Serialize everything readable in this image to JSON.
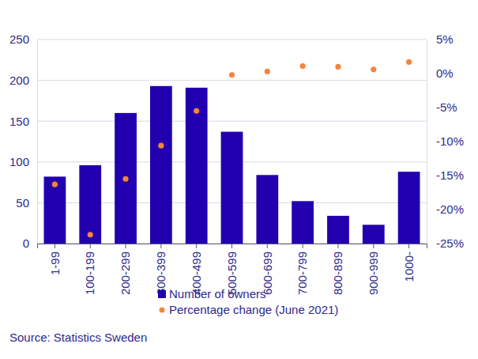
{
  "chart_data": {
    "type": "bar",
    "categories": [
      "1-99",
      "100-199",
      "200-299",
      "300-399",
      "400-499",
      "500-599",
      "600-699",
      "700-799",
      "800-899",
      "900-999",
      "1000-"
    ],
    "series": [
      {
        "name": "Number of owners",
        "type": "bar",
        "color": "#2200b0",
        "values": [
          82,
          96,
          160,
          193,
          191,
          137,
          84,
          52,
          34,
          23,
          88
        ]
      },
      {
        "name": "Percentage change (June 2021)",
        "type": "scatter",
        "color": "#f5843c",
        "marker": "circle",
        "axis": "y2",
        "values": [
          -16.3,
          -23.7,
          -15.5,
          -10.6,
          -5.5,
          -0.2,
          0.3,
          1.1,
          1.0,
          0.6,
          1.7
        ]
      }
    ],
    "ylim": [
      0,
      250
    ],
    "yticks": [
      0,
      50,
      100,
      150,
      200,
      250
    ],
    "y2lim": [
      -25,
      5
    ],
    "y2ticks": [
      {
        "value": -25,
        "label": "-25%"
      },
      {
        "value": -20,
        "label": "-20%"
      },
      {
        "value": -15,
        "label": "-15%"
      },
      {
        "value": -10,
        "label": "-10%"
      },
      {
        "value": -5,
        "label": "-5%"
      },
      {
        "value": 0,
        "label": "0%"
      },
      {
        "value": 5,
        "label": "5%"
      }
    ],
    "grid": true,
    "legend": "bottom",
    "source": "Source: Statistics Sweden"
  }
}
